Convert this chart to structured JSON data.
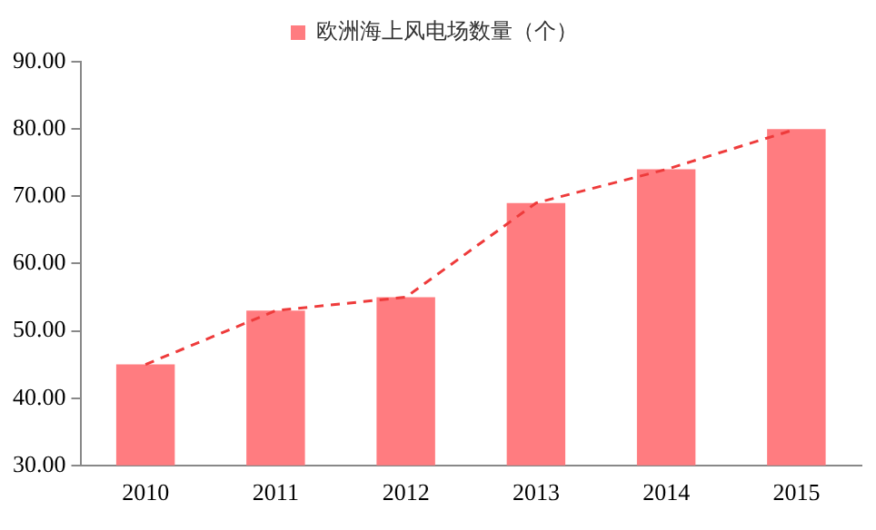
{
  "chart_data": {
    "type": "bar",
    "categories": [
      "2010",
      "2011",
      "2012",
      "2013",
      "2014",
      "2015"
    ],
    "series": [
      {
        "name": "欧洲海上风电场数量（个）",
        "color": "#ff7c80",
        "values": [
          45,
          53,
          55,
          69,
          74,
          80
        ]
      },
      {
        "type": "line",
        "color": "#ee3b3b",
        "line_style": "dashed",
        "marker": "none",
        "values": [
          45,
          53,
          55,
          69,
          74,
          80
        ]
      }
    ],
    "ylim": [
      30,
      90
    ],
    "yticks": [
      {
        "value": 30,
        "label": "30.00"
      },
      {
        "value": 40,
        "label": "40.00"
      },
      {
        "value": 50,
        "label": "50.00"
      },
      {
        "value": 60,
        "label": "60.00"
      },
      {
        "value": 70,
        "label": "70.00"
      },
      {
        "value": 80,
        "label": "80.00"
      },
      {
        "value": 90,
        "label": "90.00"
      }
    ],
    "grid": false,
    "legend": "top"
  }
}
